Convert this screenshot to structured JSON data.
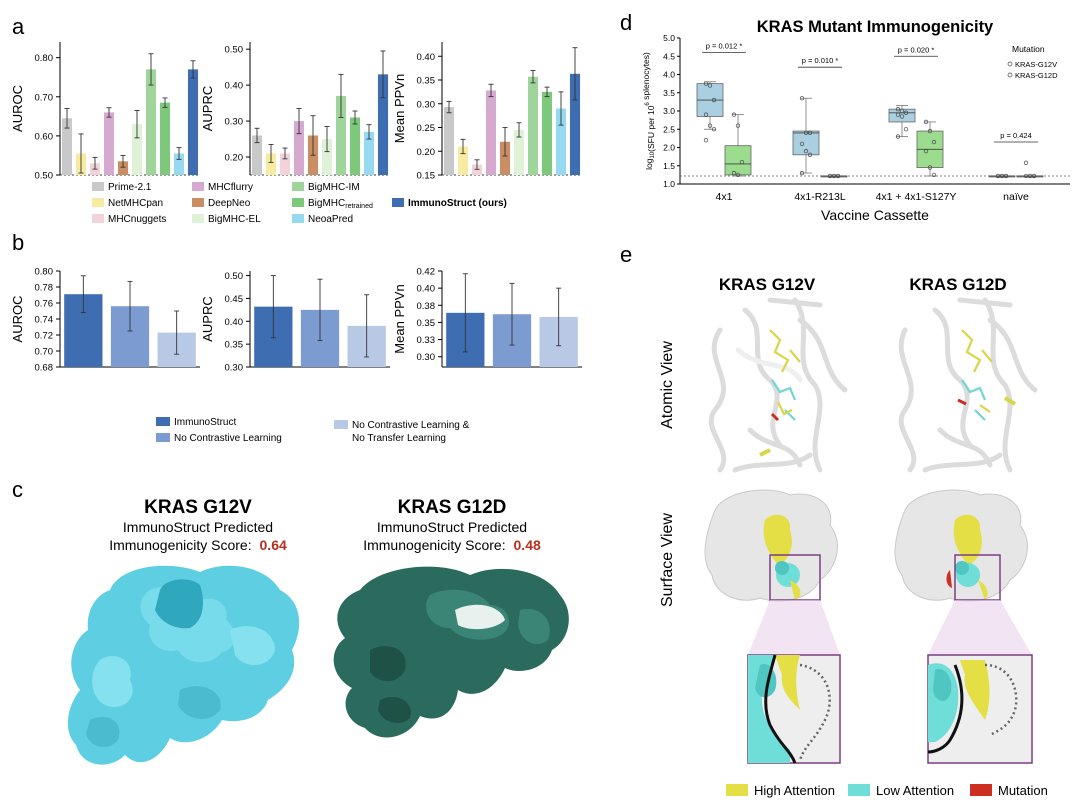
{
  "panel_letters": [
    "a",
    "b",
    "c",
    "d",
    "e"
  ],
  "chart_data": [
    {
      "id": "a1",
      "type": "bar",
      "ylabel": "AUROC",
      "ylim": [
        0.5,
        0.84
      ],
      "yticks": [
        0.5,
        0.6,
        0.7,
        0.8
      ],
      "categories": [
        "Prime-2.1",
        "NetMHCpan",
        "MHCnuggets",
        "MHCflurry",
        "DeepNeo",
        "BigMHC-EL",
        "BigMHC-IM",
        "BigMHC-retrained",
        "NeoaPred",
        "ImmunoStruct (ours)"
      ],
      "values": [
        0.645,
        0.555,
        0.53,
        0.66,
        0.535,
        0.63,
        0.77,
        0.685,
        0.555,
        0.77
      ],
      "errors": [
        0.025,
        0.05,
        0.015,
        0.012,
        0.015,
        0.035,
        0.04,
        0.012,
        0.015,
        0.022
      ]
    },
    {
      "id": "a2",
      "type": "bar",
      "ylabel": "AUPRC",
      "ylim": [
        0.15,
        0.52
      ],
      "yticks": [
        0.2,
        0.3,
        0.4,
        0.5
      ],
      "categories": [
        "Prime-2.1",
        "NetMHCpan",
        "MHCnuggets",
        "MHCflurry",
        "DeepNeo",
        "BigMHC-EL",
        "BigMHC-IM",
        "BigMHC-retrained",
        "NeoaPred",
        "ImmunoStruct (ours)"
      ],
      "values": [
        0.26,
        0.21,
        0.21,
        0.3,
        0.26,
        0.25,
        0.37,
        0.31,
        0.27,
        0.43
      ],
      "errors": [
        0.02,
        0.025,
        0.015,
        0.035,
        0.055,
        0.035,
        0.06,
        0.018,
        0.02,
        0.065
      ]
    },
    {
      "id": "a3",
      "type": "bar",
      "ylabel": "Mean PPVn",
      "ylim": [
        0.15,
        0.43
      ],
      "yticks": [
        0.15,
        0.2,
        0.25,
        0.3,
        0.35,
        0.4
      ],
      "categories": [
        "Prime-2.1",
        "NetMHCpan",
        "MHCnuggets",
        "MHCflurry",
        "DeepNeo",
        "BigMHC-EL",
        "BigMHC-IM",
        "BigMHC-retrained",
        "NeoaPred",
        "ImmunoStruct (ours)"
      ],
      "values": [
        0.293,
        0.21,
        0.172,
        0.328,
        0.22,
        0.245,
        0.357,
        0.325,
        0.29,
        0.363
      ],
      "errors": [
        0.012,
        0.015,
        0.01,
        0.013,
        0.03,
        0.015,
        0.013,
        0.01,
        0.035,
        0.055
      ]
    },
    {
      "id": "b1",
      "type": "bar",
      "ylabel": "AUROC",
      "ylim": [
        0.68,
        0.8
      ],
      "yticks": [
        0.68,
        0.7,
        0.72,
        0.74,
        0.76,
        0.78,
        0.8
      ],
      "categories": [
        "ImmunoStruct",
        "No Contrastive Learning",
        "No Contrastive Learning & No Transfer Learning"
      ],
      "values": [
        0.771,
        0.756,
        0.723
      ],
      "errors": [
        0.023,
        0.031,
        0.027
      ]
    },
    {
      "id": "b2",
      "type": "bar",
      "ylabel": "AUPRC",
      "ylim": [
        0.3,
        0.51
      ],
      "yticks": [
        0.3,
        0.35,
        0.4,
        0.45,
        0.5
      ],
      "categories": [
        "ImmunoStruct",
        "No Contrastive Learning",
        "No Contrastive Learning & No Transfer Learning"
      ],
      "values": [
        0.432,
        0.425,
        0.39
      ],
      "errors": [
        0.068,
        0.067,
        0.068
      ]
    },
    {
      "id": "b3",
      "type": "bar",
      "ylabel": "Mean PPVn",
      "ylim": [
        0.285,
        0.425
      ],
      "yticks": [
        0.3,
        0.325,
        0.35,
        0.375,
        0.4,
        0.425
      ],
      "categories": [
        "ImmunoStruct",
        "No Contrastive Learning",
        "No Contrastive Learning & No Transfer Learning"
      ],
      "values": [
        0.364,
        0.362,
        0.358
      ],
      "errors": [
        0.057,
        0.045,
        0.042
      ]
    },
    {
      "id": "d",
      "type": "box",
      "title": "KRAS Mutant Immunogenicity",
      "xlabel": "Vaccine Cassette",
      "ylabel_prefix": "log",
      "ylabel_sub": "10",
      "ylabel_mid": "(SFU per 10",
      "ylabel_sup": "6",
      "ylabel_end": " splenocytes)",
      "ylim": [
        1.0,
        5.0
      ],
      "yticks": [
        1.0,
        1.5,
        2.0,
        2.5,
        3.0,
        3.5,
        4.0,
        4.5,
        5.0
      ],
      "categories": [
        "4x1",
        "4x1-R213L",
        "4x1 + 4x1-S127Y",
        "naïve"
      ],
      "pvalues": [
        "p = 0.012 *",
        "p = 0.010 *",
        "p = 0.020 *",
        "p = 0.424"
      ],
      "legend_title": "Mutation",
      "series": [
        {
          "name": "KRAS-G12V",
          "boxes": [
            [
              2.5,
              2.85,
              3.3,
              3.75,
              3.8
            ],
            [
              1.3,
              1.8,
              2.4,
              2.45,
              3.35
            ],
            [
              2.3,
              2.7,
              2.95,
              3.05,
              3.15
            ],
            [
              1.22,
              1.22,
              1.22,
              1.22,
              1.22
            ]
          ],
          "points": [
            [
              3.75,
              3.7,
              3.3,
              2.9,
              2.6,
              2.5,
              2.2
            ],
            [
              3.35,
              2.4,
              2.4,
              2.1,
              1.9,
              1.8,
              1.3
            ],
            [
              3.05,
              3.0,
              2.95,
              2.9,
              2.85,
              2.5,
              2.3
            ],
            [
              1.22,
              1.22,
              1.22,
              1.22,
              1.22,
              1.22
            ]
          ]
        },
        {
          "name": "KRAS-G12D",
          "boxes": [
            [
              1.22,
              1.25,
              1.55,
              2.05,
              2.9
            ],
            [
              1.22,
              1.22,
              1.22,
              1.22,
              1.22
            ],
            [
              1.22,
              1.45,
              1.95,
              2.45,
              2.7
            ],
            [
              1.22,
              1.22,
              1.22,
              1.22,
              1.22
            ]
          ],
          "points": [
            [
              2.9,
              2.6,
              1.6,
              1.3,
              1.25
            ],
            [
              1.22,
              1.22,
              1.22,
              1.22,
              1.22,
              1.22
            ],
            [
              2.7,
              2.45,
              2.15,
              1.9,
              1.45,
              1.25
            ],
            [
              1.58,
              1.22,
              1.22,
              1.22,
              1.22,
              1.22
            ]
          ]
        }
      ],
      "dashed_line": 1.22
    }
  ],
  "legend_a": {
    "items": [
      {
        "label": "Prime-2.1",
        "color": "#c9c9c9"
      },
      {
        "label": "MHCflurry",
        "color": "#d6a9d1"
      },
      {
        "label": "BigMHC-IM",
        "color": "#9fd49a"
      },
      {
        "label": "NetMHCpan",
        "color": "#f6eba0"
      },
      {
        "label": "DeepNeo",
        "color": "#c98e64"
      },
      {
        "label": "BigMHC",
        "sub": "retrained",
        "color": "#7dc87a"
      },
      {
        "label": "ImmunoStruct (ours)",
        "color": "#3f6db1"
      },
      {
        "label": "MHCnuggets",
        "color": "#f3d3da"
      },
      {
        "label": "BigMHC-EL",
        "color": "#dff1d7"
      },
      {
        "label": "NeoaPred",
        "color": "#96d9f0"
      }
    ]
  },
  "bar_colors_a": [
    "#c9c9c9",
    "#f6eba0",
    "#f3d3da",
    "#d6a9d1",
    "#c98e64",
    "#dff1d7",
    "#9fd49a",
    "#7dc87a",
    "#96d9f0",
    "#3f6db1"
  ],
  "bar_colors_b": [
    "#3f6db1",
    "#7c9bd0",
    "#b8c9e6"
  ],
  "legend_b": {
    "items": [
      {
        "label": "ImmunoStruct",
        "color": "#3f6db1"
      },
      {
        "label": "No Contrastive Learning",
        "color": "#7c9bd0"
      },
      {
        "label": "No Contrastive Learning &",
        "label2": "No Transfer Learning",
        "color": "#b8c9e6"
      }
    ]
  },
  "panel_c": {
    "left": {
      "title": "KRAS G12V",
      "line1": "ImmunoStruct Predicted",
      "line2": "Immunogenicity Score:",
      "score": "0.64",
      "color": "#5ecfe2"
    },
    "right": {
      "title": "KRAS G12D",
      "line1": "ImmunoStruct Predicted",
      "line2": "Immunogenicity Score:",
      "score": "0.48",
      "color": "#2b6b5e"
    },
    "score_color": "#b5301f"
  },
  "panel_e": {
    "col_titles": [
      "KRAS G12V",
      "KRAS G12D"
    ],
    "row_labels": [
      "Atomic View",
      "Surface View"
    ],
    "legend": [
      {
        "label": "High Attention",
        "color": "#e3df44"
      },
      {
        "label": "Low Attention",
        "color": "#6fded8"
      },
      {
        "label": "Mutation",
        "color": "#cc2f22"
      }
    ]
  }
}
